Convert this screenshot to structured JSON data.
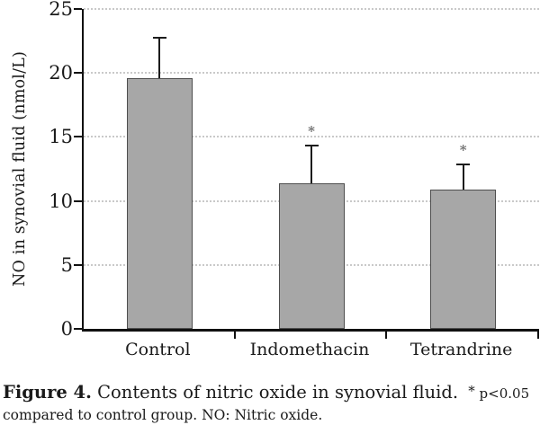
{
  "chart_data": {
    "type": "bar",
    "categories": [
      "Control",
      "Indomethacin",
      "Tetrandrine"
    ],
    "values": [
      19.6,
      11.4,
      10.9
    ],
    "errors_up": [
      3.2,
      3.0,
      2.0
    ],
    "significance": [
      "",
      "*",
      "*"
    ],
    "ylabel": "NO in synovial fluid (nmol/L)",
    "xlabel": "",
    "yticks": [
      0,
      5,
      10,
      15,
      20,
      25
    ],
    "ylim": [
      0,
      25
    ],
    "grid": "horizontal-dotted",
    "legend": "none",
    "bar_color": "#a7a7a7",
    "bar_border_color": "#4e4e4e",
    "error_bar_color": "#1c1c1c",
    "significance_color": "#6e6e6e",
    "axis_color": "#111111"
  },
  "caption": {
    "label": "Figure 4.",
    "title": "Contents of nitric oxide in synovial fluid.",
    "note_star": "*",
    "note_lead": "p<0.05",
    "note_rest": "compared to control group. NO: Nitric oxide."
  }
}
